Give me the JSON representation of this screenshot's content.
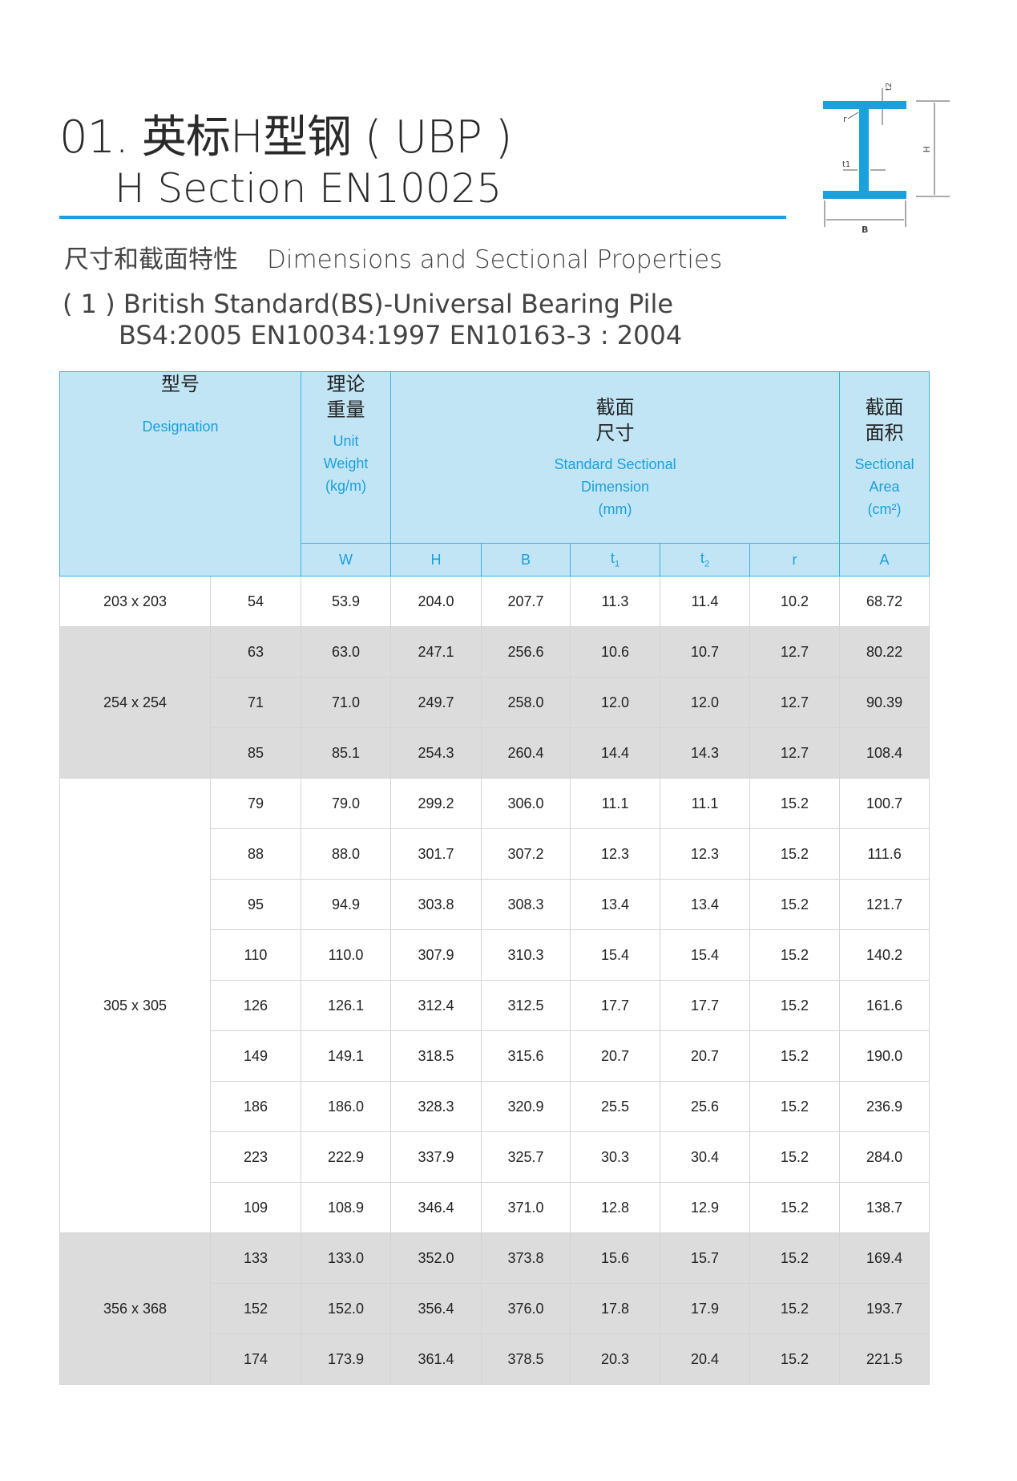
{
  "header": {
    "title_line1": "01. 英标H型钢 ( UBP )",
    "title_line2": "H Section  EN10025",
    "subtitle_cn": "尺寸和截面特性",
    "subtitle_en": "Dimensions and Sectional Properties",
    "standard_line1": "( 1 ) British Standard(BS)-Universal Bearing  Pile",
    "standard_line2": "BS4:2005  EN10034:1997  EN10163-3 : 2004",
    "accent_color": "#1aa0dc"
  },
  "diagram": {
    "labels": {
      "t2": "t2",
      "r": "r",
      "t1": "t1",
      "H": "H",
      "B": "B"
    }
  },
  "table": {
    "headers": {
      "designation": {
        "cn": "型号",
        "en": "Designation"
      },
      "weight": {
        "cn1": "理论",
        "cn2": "重量",
        "en1": "Unit",
        "en2": "Weight",
        "en3": "(kg/m)"
      },
      "dimension": {
        "cn1": "截面",
        "cn2": "尺寸",
        "en1": "Standard Sectional",
        "en2": "Dimension",
        "en3": "(mm)"
      },
      "area": {
        "cn1": "截面",
        "cn2": "面积",
        "en1": "Sectional",
        "en2": "Area",
        "en3": "(cm²)"
      }
    },
    "symbols": [
      "W",
      "H",
      "B",
      "t",
      "t",
      "r",
      "A"
    ],
    "symbol_subs": [
      "",
      "",
      "",
      "1",
      "2",
      "",
      ""
    ],
    "groups": [
      {
        "designation": "203 x 203",
        "shade": "white",
        "rows": [
          [
            "54",
            "53.9",
            "204.0",
            "207.7",
            "11.3",
            "11.4",
            "10.2",
            "68.72"
          ]
        ]
      },
      {
        "designation": "254 x 254",
        "shade": "gray",
        "rows": [
          [
            "63",
            "63.0",
            "247.1",
            "256.6",
            "10.6",
            "10.7",
            "12.7",
            "80.22"
          ],
          [
            "71",
            "71.0",
            "249.7",
            "258.0",
            "12.0",
            "12.0",
            "12.7",
            "90.39"
          ],
          [
            "85",
            "85.1",
            "254.3",
            "260.4",
            "14.4",
            "14.3",
            "12.7",
            "108.4"
          ]
        ]
      },
      {
        "designation": "305 x 305",
        "shade": "white",
        "rows": [
          [
            "79",
            "79.0",
            "299.2",
            "306.0",
            "11.1",
            "11.1",
            "15.2",
            "100.7"
          ],
          [
            "88",
            "88.0",
            "301.7",
            "307.2",
            "12.3",
            "12.3",
            "15.2",
            "111.6"
          ],
          [
            "95",
            "94.9",
            "303.8",
            "308.3",
            "13.4",
            "13.4",
            "15.2",
            "121.7"
          ],
          [
            "110",
            "110.0",
            "307.9",
            "310.3",
            "15.4",
            "15.4",
            "15.2",
            "140.2"
          ],
          [
            "126",
            "126.1",
            "312.4",
            "312.5",
            "17.7",
            "17.7",
            "15.2",
            "161.6"
          ],
          [
            "149",
            "149.1",
            "318.5",
            "315.6",
            "20.7",
            "20.7",
            "15.2",
            "190.0"
          ],
          [
            "186",
            "186.0",
            "328.3",
            "320.9",
            "25.5",
            "25.6",
            "15.2",
            "236.9"
          ],
          [
            "223",
            "222.9",
            "337.9",
            "325.7",
            "30.3",
            "30.4",
            "15.2",
            "284.0"
          ],
          [
            "109",
            "108.9",
            "346.4",
            "371.0",
            "12.8",
            "12.9",
            "15.2",
            "138.7"
          ]
        ]
      },
      {
        "designation": "356 x 368",
        "shade": "gray",
        "rows": [
          [
            "133",
            "133.0",
            "352.0",
            "373.8",
            "15.6",
            "15.7",
            "15.2",
            "169.4"
          ],
          [
            "152",
            "152.0",
            "356.4",
            "376.0",
            "17.8",
            "17.9",
            "15.2",
            "193.7"
          ],
          [
            "174",
            "173.9",
            "361.4",
            "378.5",
            "20.3",
            "20.4",
            "15.2",
            "221.5"
          ]
        ]
      }
    ]
  }
}
